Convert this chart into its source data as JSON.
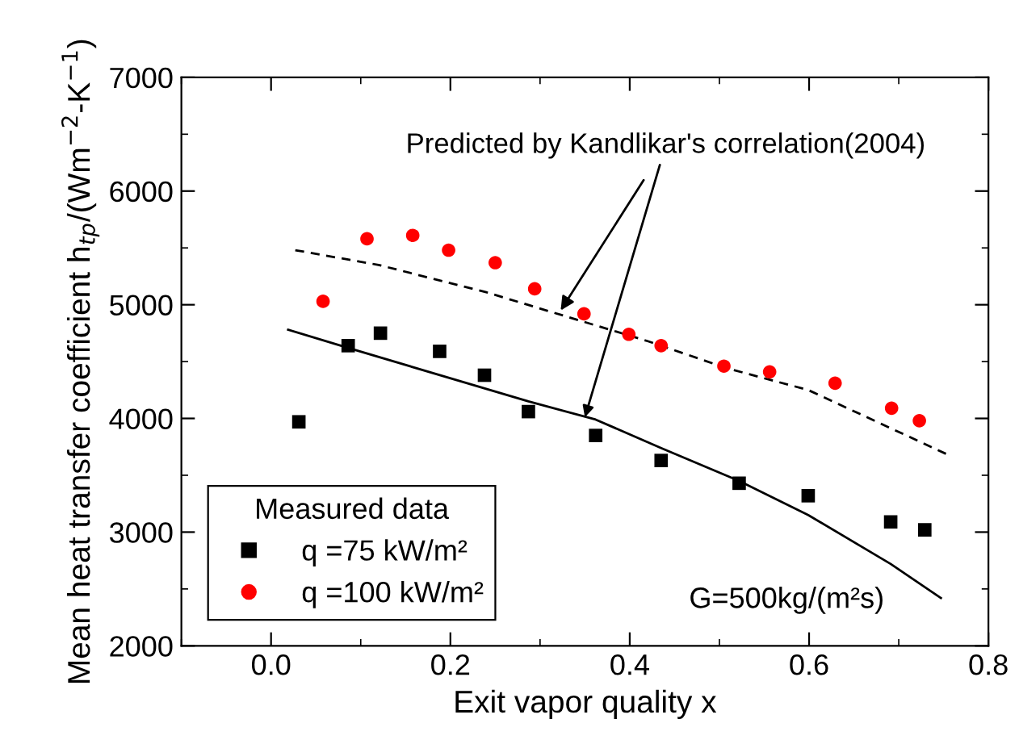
{
  "chart_data": {
    "type": "scatter",
    "xlabel": "Exit vapor quality x",
    "ylabel": "Mean heat transfer coefficient h$_{tp}$/(Wm$^{−2}$-K$^{−1}$)",
    "legend_title": "Measured data",
    "legend": "bottom left",
    "grid": false,
    "xlim": [
      -0.1,
      0.8
    ],
    "xticks": [
      {
        "value": 0,
        "label": "0.0"
      },
      {
        "value": 0.2,
        "label": "0.2"
      },
      {
        "value": 0.4,
        "label": "0.4"
      },
      {
        "value": 0.6,
        "label": "0.6"
      },
      {
        "value": 0.8,
        "label": "0.8"
      }
    ],
    "ylim": [
      2000,
      7000
    ],
    "yticks": [
      2000,
      3000,
      4000,
      5000,
      6000,
      7000
    ],
    "series": [
      {
        "name": "q =75 kW/m²",
        "marker": "square",
        "color": "#000000",
        "x": [
          0.031,
          0.086,
          0.122,
          0.188,
          0.238,
          0.287,
          0.362,
          0.435,
          0.522,
          0.599,
          0.691,
          0.729
        ],
        "values": [
          3970,
          4640,
          4750,
          4590,
          4380,
          4060,
          3850,
          3630,
          3430,
          3320,
          3090,
          3020
        ]
      },
      {
        "name": "q =100 kW/m²",
        "marker": "circle",
        "color": "#ff0000",
        "x": [
          0.058,
          0.107,
          0.158,
          0.198,
          0.25,
          0.294,
          0.349,
          0.399,
          0.435,
          0.505,
          0.556,
          0.629,
          0.692,
          0.723
        ],
        "values": [
          5030,
          5580,
          5610,
          5480,
          5370,
          5140,
          4920,
          4740,
          4640,
          4460,
          4410,
          4310,
          4090,
          3980
        ]
      },
      {
        "type": "line",
        "line_style": "dashed",
        "color": "#000000",
        "x": [
          0.027,
          0.12,
          0.24,
          0.42,
          0.509,
          0.599,
          0.755
        ],
        "values": [
          5480,
          5350,
          5110,
          4680,
          4440,
          4250,
          3680
        ]
      },
      {
        "type": "line",
        "line_style": "solid",
        "color": "#000000",
        "x": [
          0.019,
          0.086,
          0.287,
          0.362,
          0.435,
          0.522,
          0.599,
          0.691,
          0.747
        ],
        "values": [
          4780,
          4620,
          4150,
          3990,
          3740,
          3450,
          3150,
          2720,
          2420
        ]
      }
    ],
    "annotations": [
      {
        "text": "Predicted by Kandlikar's correlation(2004)",
        "x": 0.323,
        "y": 4950
      },
      "G=500kg/(m²s)"
    ]
  }
}
